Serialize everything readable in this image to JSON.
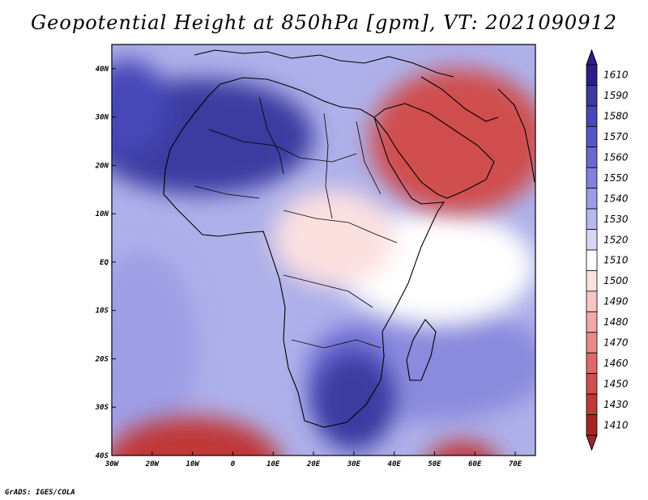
{
  "title": "Geopotential Height at 850hPa [gpm], VT: 2021090912",
  "credit": "GrADS: IGES/COLA",
  "map": {
    "projection": "lat-lon",
    "lon_range": [
      -30,
      75
    ],
    "lat_range": [
      -40,
      45
    ],
    "lat_ticks": [
      {
        "lat": 40,
        "label": "40N"
      },
      {
        "lat": 30,
        "label": "30N"
      },
      {
        "lat": 20,
        "label": "20N"
      },
      {
        "lat": 10,
        "label": "10N"
      },
      {
        "lat": 0,
        "label": "EQ"
      },
      {
        "lat": -10,
        "label": "10S"
      },
      {
        "lat": -20,
        "label": "20S"
      },
      {
        "lat": -30,
        "label": "30S"
      },
      {
        "lat": -40,
        "label": "40S"
      }
    ],
    "lon_ticks": [
      {
        "lon": -30,
        "label": "30W"
      },
      {
        "lon": -20,
        "label": "20W"
      },
      {
        "lon": -10,
        "label": "10W"
      },
      {
        "lon": 0,
        "label": "0"
      },
      {
        "lon": 10,
        "label": "10E"
      },
      {
        "lon": 20,
        "label": "20E"
      },
      {
        "lon": 30,
        "label": "30E"
      },
      {
        "lon": 40,
        "label": "40E"
      },
      {
        "lon": 50,
        "label": "50E"
      },
      {
        "lon": 60,
        "label": "60E"
      },
      {
        "lon": 70,
        "label": "70E"
      }
    ],
    "field_regions": [
      {
        "name": "sahara-high",
        "lon": -8,
        "lat": 26,
        "rx_deg": 28,
        "ry_deg": 12,
        "level": 1590
      },
      {
        "name": "north-atlantic-high",
        "lon": -26,
        "lat": 32,
        "rx_deg": 10,
        "ry_deg": 10,
        "level": 1580
      },
      {
        "name": "south-africa-high",
        "lon": 30,
        "lat": -29,
        "rx_deg": 10,
        "ry_deg": 10,
        "level": 1590
      },
      {
        "name": "arabia-low",
        "lon": 56,
        "lat": 25,
        "rx_deg": 22,
        "ry_deg": 15,
        "level": 1450
      },
      {
        "name": "central-africa-trough",
        "lon": 25,
        "lat": 5,
        "rx_deg": 15,
        "ry_deg": 10,
        "level": 1500
      },
      {
        "name": "southwest-atlantic-low",
        "lon": -10,
        "lat": -42,
        "rx_deg": 22,
        "ry_deg": 10,
        "level": 1430
      },
      {
        "name": "southern-ocean-low",
        "lon": 57,
        "lat": -42,
        "rx_deg": 9,
        "ry_deg": 5,
        "level": 1430
      }
    ]
  },
  "colorbar": {
    "levels": [
      {
        "label": "1610",
        "color": "#2a1f8a"
      },
      {
        "label": "1590",
        "color": "#3a3aa0"
      },
      {
        "label": "1580",
        "color": "#4747b8"
      },
      {
        "label": "1570",
        "color": "#5656c8"
      },
      {
        "label": "1560",
        "color": "#6a6ad2"
      },
      {
        "label": "1550",
        "color": "#8282dc"
      },
      {
        "label": "1540",
        "color": "#9c9ce6"
      },
      {
        "label": "1530",
        "color": "#b8b8ee"
      },
      {
        "label": "1520",
        "color": "#d6d6f6"
      },
      {
        "label": "1510",
        "color": "#ffffff"
      },
      {
        "label": "1500",
        "color": "#fce0e0"
      },
      {
        "label": "1490",
        "color": "#f8c4c4"
      },
      {
        "label": "1480",
        "color": "#f0a8a8"
      },
      {
        "label": "1470",
        "color": "#e88a8a"
      },
      {
        "label": "1460",
        "color": "#dc6a6a"
      },
      {
        "label": "1450",
        "color": "#d04e4e"
      },
      {
        "label": "1430",
        "color": "#c03838"
      },
      {
        "label": "1410",
        "color": "#a82424"
      }
    ],
    "top_arrow_color": "#2a1f8a",
    "bottom_arrow_color": "#a82424"
  }
}
